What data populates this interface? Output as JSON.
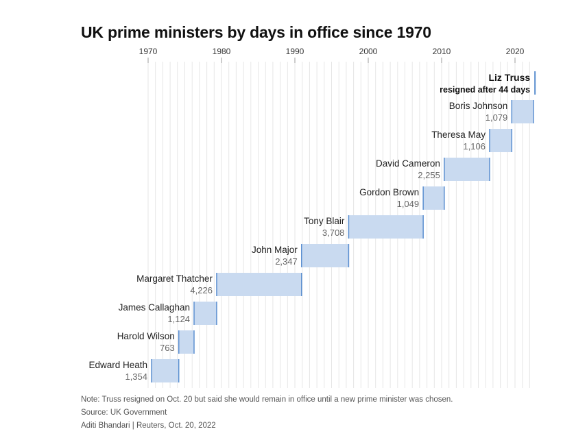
{
  "chart_data": {
    "type": "bar",
    "subtype": "timeline",
    "title": "UK prime ministers by days in office since 1970",
    "x_ticks": [
      "1970",
      "1980",
      "1990",
      "2000",
      "2010",
      "2020"
    ],
    "xlim": [
      1970,
      2022.9
    ],
    "series": [
      {
        "name": "Edward Heath",
        "start": 1970.47,
        "end": 1974.18,
        "days": "1,354"
      },
      {
        "name": "Harold Wilson",
        "start": 1974.18,
        "end": 1976.26,
        "days": "763"
      },
      {
        "name": "James Callaghan",
        "start": 1976.26,
        "end": 1979.34,
        "days": "1,124"
      },
      {
        "name": "Margaret Thatcher",
        "start": 1979.34,
        "end": 1990.91,
        "days": "4,226"
      },
      {
        "name": "John Major",
        "start": 1990.91,
        "end": 1997.33,
        "days": "2,347"
      },
      {
        "name": "Tony Blair",
        "start": 1997.33,
        "end": 2007.49,
        "days": "3,708"
      },
      {
        "name": "Gordon Brown",
        "start": 2007.49,
        "end": 2010.36,
        "days": "1,049"
      },
      {
        "name": "David Cameron",
        "start": 2010.36,
        "end": 2016.54,
        "days": "2,255"
      },
      {
        "name": "Theresa May",
        "start": 2016.54,
        "end": 2019.56,
        "days": "1,106"
      },
      {
        "name": "Boris Johnson",
        "start": 2019.56,
        "end": 2022.51,
        "days": "1,079"
      }
    ],
    "highlight": {
      "name": "Liz Truss",
      "start": 2022.51,
      "end": 2022.63,
      "note": "resigned after 44 days"
    },
    "note": "Note: Truss resigned on Oct. 20 but said she would remain in office until a new prime minister was chosen.",
    "source": "Source: UK Government",
    "credit": "Aditi Bhandari  |  Reuters, Oct. 20, 2022",
    "colors": {
      "bar_fill": "#c9daf0",
      "bar_edge": "#5b8fd0",
      "grid": "#e6e6e6",
      "axis_tick": "#999999"
    }
  }
}
